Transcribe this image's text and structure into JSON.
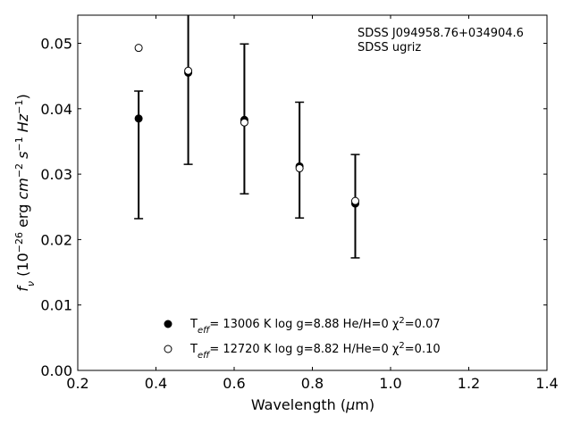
{
  "chart_data": {
    "type": "scatter",
    "annotation_lines": [
      "SDSS J094958.76+034904.6",
      "SDSS ugriz"
    ],
    "xlabel": "Wavelength (μm)",
    "ylabel": "f_ν (10^-26 erg cm^-2 s^-1 Hz^-1)",
    "xlim": [
      0.2,
      1.4
    ],
    "ylim": [
      0.0,
      0.0543
    ],
    "xticks": [
      "0.2",
      "0.4",
      "0.6",
      "0.8",
      "1.0",
      "1.2",
      "1.4"
    ],
    "yticks": [
      "0.00",
      "0.01",
      "0.02",
      "0.03",
      "0.04",
      "0.05"
    ],
    "grid": false,
    "legend_position": "bottom-center",
    "observed": {
      "x": [
        0.3557,
        0.4825,
        0.6261,
        0.7672,
        0.9097
      ],
      "y": [
        0.0385,
        0.0455,
        0.0384,
        0.0312,
        0.0257
      ],
      "err": [
        0.0042,
        0.014,
        0.0115,
        0.0098,
        0.0073
      ],
      "ylo_clipped": [
        0.0232,
        0.0315,
        0.027,
        0.0233,
        0.0172
      ]
    },
    "series": [
      {
        "marker": "filled",
        "label_html": "T<tspan font-style='italic' baseline-shift='sub' font-size='10'>eff</tspan>= 13006 K  log g=8.88  He/H=0  χ<tspan baseline-shift='super' font-size='10'>2</tspan>=0.07",
        "x": [
          0.3557,
          0.4825,
          0.6261,
          0.7672,
          0.9097
        ],
        "y": [
          0.0385,
          0.0455,
          0.0383,
          0.0312,
          0.0255
        ]
      },
      {
        "marker": "open",
        "label_html": "T<tspan font-style='italic' baseline-shift='sub' font-size='10'>eff</tspan>= 12720 K  log g=8.82  H/He=0  χ<tspan baseline-shift='super' font-size='10'>2</tspan>=0.10",
        "x": [
          0.3557,
          0.4825,
          0.6261,
          0.7672,
          0.9097
        ],
        "y": [
          0.0493,
          0.0458,
          0.0379,
          0.0309,
          0.0259
        ]
      }
    ]
  }
}
